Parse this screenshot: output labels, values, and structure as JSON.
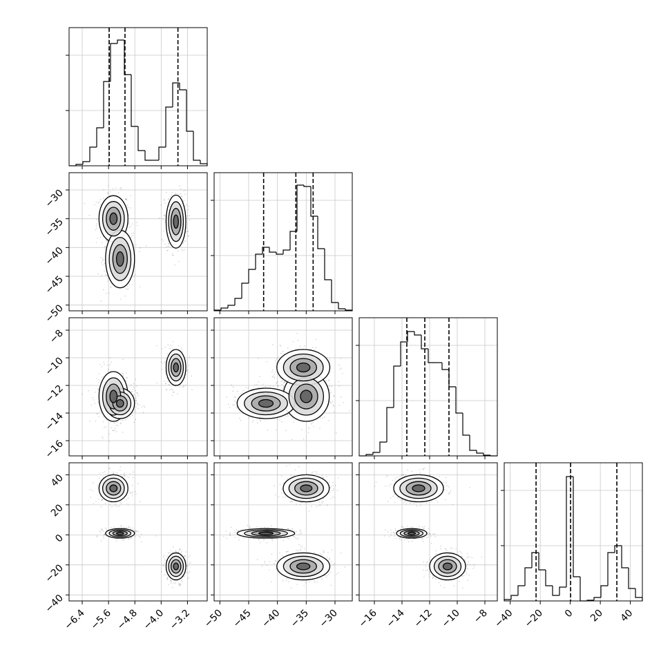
{
  "chart_data": {
    "type": "corner",
    "grid": true,
    "params": [
      {
        "lim": [
          -6.8,
          -2.6
        ],
        "ticks": [
          {
            "value": -6.4,
            "label": "−6.4"
          },
          {
            "value": -5.6,
            "label": "−5.6"
          },
          {
            "value": -4.8,
            "label": "−4.8"
          },
          {
            "value": -4.0,
            "label": "−4.0"
          },
          {
            "value": -3.2,
            "label": "−3.2"
          }
        ]
      },
      {
        "lim": [
          -51,
          -27
        ],
        "ticks": [
          {
            "value": -50,
            "label": "−50"
          },
          {
            "value": -45,
            "label": "−45"
          },
          {
            "value": -40,
            "label": "−40"
          },
          {
            "value": -35,
            "label": "−35"
          },
          {
            "value": -30,
            "label": "−30"
          }
        ]
      },
      {
        "lim": [
          -17.1,
          -7.1
        ],
        "ticks": [
          {
            "value": -16,
            "label": "−16"
          },
          {
            "value": -14,
            "label": "−14"
          },
          {
            "value": -12,
            "label": "−12"
          },
          {
            "value": -10,
            "label": "−10"
          },
          {
            "value": -8,
            "label": "−8"
          }
        ]
      },
      {
        "lim": [
          -44,
          48
        ],
        "ticks": [
          {
            "value": -40,
            "label": "−40"
          },
          {
            "value": -20,
            "label": "−20"
          },
          0,
          {
            "value": 20,
            "label": "20"
          },
          {
            "value": 40,
            "label": "40"
          }
        ]
      }
    ],
    "hist_ylim": [
      0,
      100
    ],
    "hist_yticks": [
      40,
      80
    ],
    "histograms": [
      {
        "bins": [
          -6.8,
          -6.59,
          -6.38,
          -6.17,
          -5.96,
          -5.75,
          -5.54,
          -5.33,
          -5.12,
          -4.91,
          -4.7,
          -4.49,
          -4.28,
          -4.07,
          -3.86,
          -3.65,
          -3.44,
          -3.23,
          -3.02,
          -2.81,
          -2.6
        ],
        "counts": [
          0,
          1,
          3,
          13.5,
          27.5,
          61,
          88.5,
          91,
          66,
          28.5,
          11,
          4,
          4,
          13.5,
          42.5,
          60,
          55,
          25,
          4,
          1.5
        ],
        "quantiles": [
          -5.58,
          -5.1,
          -3.49
        ]
      },
      {
        "bins": [
          -51,
          -49.8,
          -48.6,
          -47.4,
          -46.2,
          -45,
          -43.8,
          -42.6,
          -41.4,
          -40.2,
          -39,
          -37.8,
          -36.6,
          -35.4,
          -34.2,
          -33,
          -31.8,
          -30.6,
          -29.4,
          -28.2,
          -27
        ],
        "counts": [
          0.5,
          2,
          4,
          9,
          20,
          30,
          41,
          46,
          42.5,
          41,
          44,
          57.5,
          91,
          90,
          68.5,
          45,
          22.5,
          6,
          1.5,
          0.5
        ],
        "quantiles": [
          -42.4,
          -36.8,
          -33.8
        ]
      },
      {
        "bins": [
          -17.1,
          -16.6,
          -16.1,
          -15.6,
          -15.1,
          -14.6,
          -14.1,
          -13.6,
          -13.1,
          -12.6,
          -12.1,
          -11.6,
          -11.1,
          -10.6,
          -10.1,
          -9.6,
          -9.1,
          -8.6,
          -8.1,
          -7.6,
          -7.1
        ],
        "counts": [
          0,
          1,
          2.5,
          10,
          35,
          65,
          82.5,
          90,
          87.5,
          77.5,
          67.5,
          67.5,
          62.5,
          50,
          31,
          15,
          4,
          2,
          0.5,
          0
        ],
        "quantiles": [
          -13.65,
          -12.35,
          -10.6
        ]
      },
      {
        "bins": [
          -44,
          -39.4,
          -34.8,
          -30.2,
          -25.6,
          -21,
          -16.4,
          -11.8,
          -7.2,
          -2.6,
          2,
          6.6,
          11.2,
          15.8,
          20.4,
          25,
          29.6,
          34.2,
          38.8,
          43.4,
          48
        ],
        "counts": [
          1,
          4,
          11,
          24,
          35,
          22.5,
          11,
          4,
          10,
          90,
          17.5,
          0,
          0.5,
          2.5,
          11,
          35,
          40,
          24,
          9,
          2.5
        ],
        "quantiles": [
          -22.8,
          0.2,
          31
        ]
      }
    ],
    "modes": [
      {
        "mean": [
          -5.45,
          -35,
          -12.8,
          31
        ],
        "sd": [
          0.22,
          2.0,
          0.9,
          4.5
        ]
      },
      {
        "mean": [
          -5.25,
          -42,
          -13.3,
          1
        ],
        "sd": [
          0.22,
          2.5,
          0.55,
          1.6
        ]
      },
      {
        "mean": [
          -3.55,
          -35.5,
          -10.7,
          -21
        ],
        "sd": [
          0.15,
          2.3,
          0.65,
          4.5
        ]
      }
    ]
  }
}
